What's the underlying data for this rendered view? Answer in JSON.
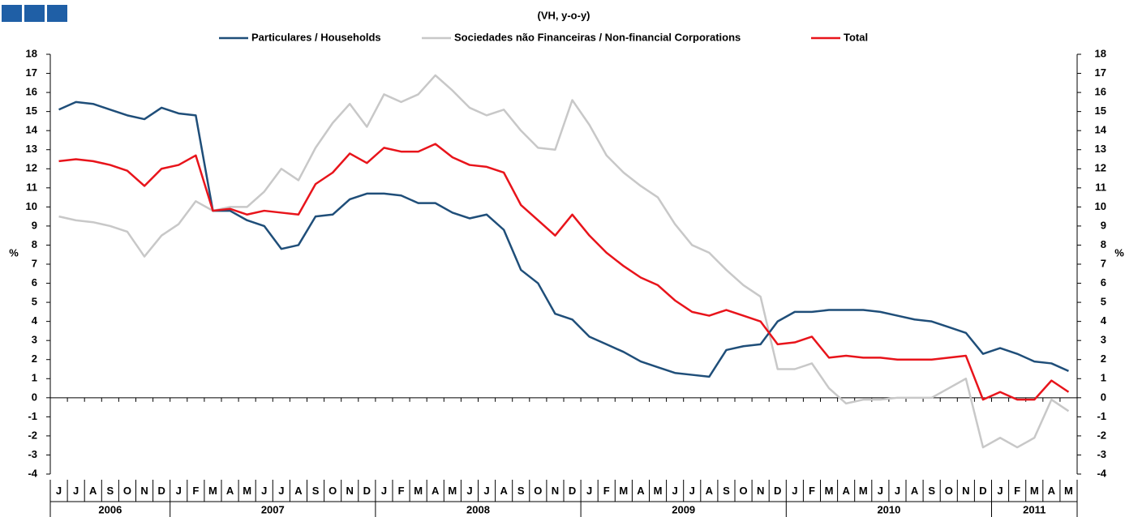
{
  "chart_data": {
    "type": "line",
    "title": "(VH, y-o-y)",
    "ylabel": "%",
    "y2label": "%",
    "categories": [
      "J",
      "J",
      "A",
      "S",
      "O",
      "N",
      "D",
      "J",
      "F",
      "M",
      "A",
      "M",
      "J",
      "J",
      "A",
      "S",
      "O",
      "N",
      "D",
      "J",
      "F",
      "M",
      "A",
      "M",
      "J",
      "J",
      "A",
      "S",
      "O",
      "N",
      "D",
      "J",
      "F",
      "M",
      "A",
      "M",
      "J",
      "J",
      "A",
      "S",
      "O",
      "N",
      "D",
      "J",
      "F",
      "M",
      "A",
      "M",
      "J",
      "J",
      "A",
      "S",
      "O",
      "N",
      "D",
      "J",
      "F",
      "M",
      "A",
      "M"
    ],
    "years": [
      "2006",
      "2007",
      "2008",
      "2009",
      "2010",
      "2011"
    ],
    "series": [
      {
        "name": "Particulares / Households",
        "color": "#1f4e79",
        "values": [
          15.1,
          15.5,
          15.4,
          15.1,
          14.8,
          14.6,
          15.2,
          14.9,
          14.8,
          9.8,
          9.8,
          9.3,
          9.0,
          7.8,
          8.0,
          9.5,
          9.6,
          10.4,
          10.7,
          10.7,
          10.6,
          10.2,
          10.2,
          9.7,
          9.4,
          9.6,
          8.8,
          6.7,
          6.0,
          4.4,
          4.1,
          3.2,
          2.8,
          2.4,
          1.9,
          1.6,
          1.3,
          1.2,
          1.1,
          2.5,
          2.7,
          2.8,
          4.0,
          4.5,
          4.5,
          4.6,
          4.6,
          4.6,
          4.5,
          4.3,
          4.1,
          4.0,
          3.7,
          3.4,
          2.3,
          2.6,
          2.3,
          1.9,
          1.8,
          1.4
        ]
      },
      {
        "name": "Sociedades não Financeiras / Non-financial Corporations",
        "color": "#c8c8c8",
        "values": [
          9.5,
          9.3,
          9.2,
          9.0,
          8.7,
          7.4,
          8.5,
          9.1,
          10.3,
          9.8,
          10.0,
          10.0,
          10.8,
          12.0,
          11.4,
          13.1,
          14.4,
          15.4,
          14.2,
          15.9,
          15.5,
          15.9,
          16.9,
          16.1,
          15.2,
          14.8,
          15.1,
          14.0,
          13.1,
          13.0,
          15.6,
          14.3,
          12.7,
          11.8,
          11.1,
          10.5,
          9.1,
          8.0,
          7.6,
          6.7,
          5.9,
          5.3,
          1.5,
          1.5,
          1.8,
          0.5,
          -0.3,
          -0.1,
          -0.1,
          0.0,
          0.0,
          0.0,
          0.5,
          1.0,
          -2.6,
          -2.1,
          -2.6,
          -2.1,
          -0.1,
          -0.7
        ]
      },
      {
        "name": "Total",
        "color": "#e8141b",
        "values": [
          12.4,
          12.5,
          12.4,
          12.2,
          11.9,
          11.1,
          12.0,
          12.2,
          12.7,
          9.8,
          9.9,
          9.6,
          9.8,
          9.7,
          9.6,
          11.2,
          11.8,
          12.8,
          12.3,
          13.1,
          12.9,
          12.9,
          13.3,
          12.6,
          12.2,
          12.1,
          11.8,
          10.1,
          9.3,
          8.5,
          9.6,
          8.5,
          7.6,
          6.9,
          6.3,
          5.9,
          5.1,
          4.5,
          4.3,
          4.6,
          4.3,
          4.0,
          2.8,
          2.9,
          3.2,
          2.1,
          2.2,
          2.1,
          2.1,
          2.0,
          2.0,
          2.0,
          2.1,
          2.2,
          -0.1,
          0.3,
          -0.1,
          -0.1,
          0.9,
          0.3
        ]
      }
    ],
    "ylim": [
      -4,
      18
    ],
    "yticks": [
      -4,
      -3,
      -2,
      -1,
      0,
      1,
      2,
      3,
      4,
      5,
      6,
      7,
      8,
      9,
      10,
      11,
      12,
      13,
      14,
      15,
      16,
      17,
      18
    ],
    "y2lim": [
      -4,
      18
    ],
    "y2ticks": [
      -4,
      -3,
      -2,
      -1,
      0,
      1,
      2,
      3,
      4,
      5,
      6,
      7,
      8,
      9,
      10,
      11,
      12,
      13,
      14,
      15,
      16,
      17,
      18
    ],
    "grid": false
  }
}
